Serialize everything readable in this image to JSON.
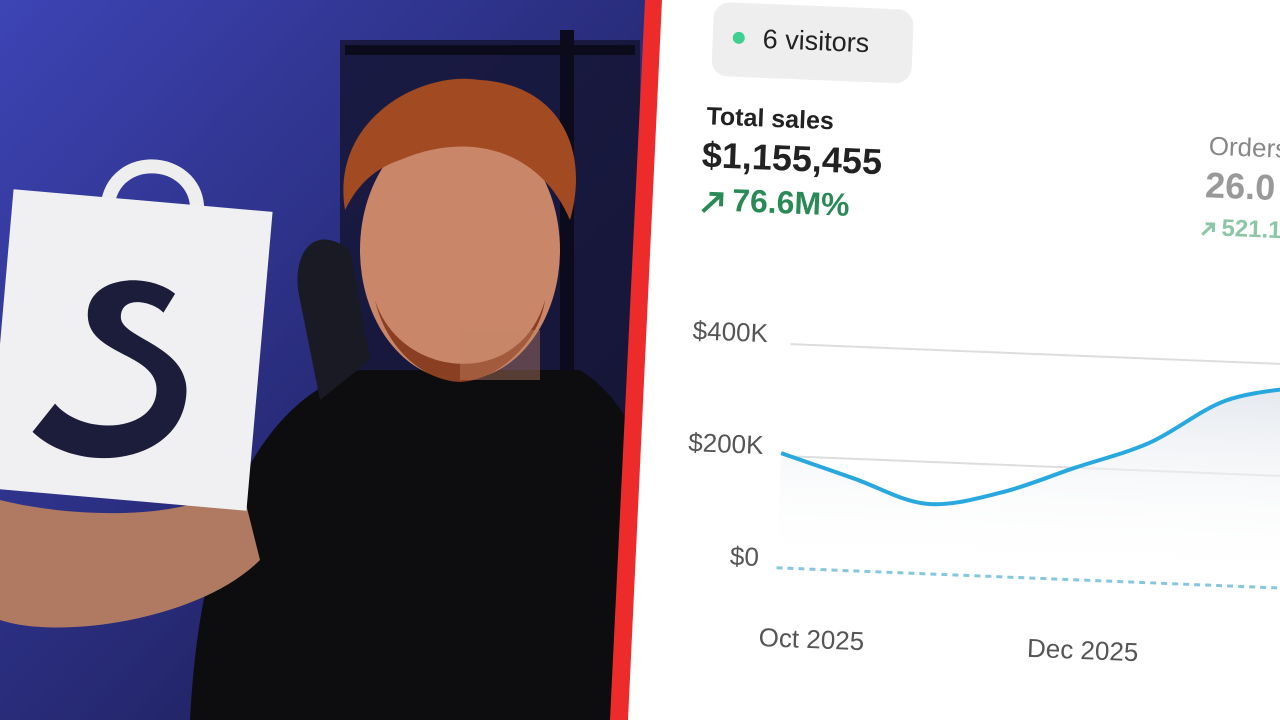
{
  "visitors": "6 visitors",
  "total_sales": {
    "label": "Total sales",
    "value": "$1,155,455",
    "change": "76.6M%"
  },
  "orders": {
    "label": "Orders",
    "value": "26.0",
    "change": "521.1"
  },
  "chart_data": {
    "type": "line",
    "categories": [
      "Oct 2025",
      null,
      null,
      null,
      "Dec 2025",
      null,
      null,
      null
    ],
    "series": [
      {
        "color": "#29a8e0",
        "values": [
          205000,
          165000,
          125000,
          150000,
          200000,
          250000,
          330000,
          360000
        ]
      },
      {
        "color": "#86c6de",
        "values": [
          0,
          0,
          0,
          0,
          0,
          0,
          0,
          0
        ]
      }
    ],
    "ylim": [
      0,
      400000
    ],
    "yticks": [
      {
        "value": 0,
        "label": "$0"
      },
      {
        "value": 200000,
        "label": "$200K"
      },
      {
        "value": 400000,
        "label": "$400K"
      }
    ],
    "grid": true
  }
}
